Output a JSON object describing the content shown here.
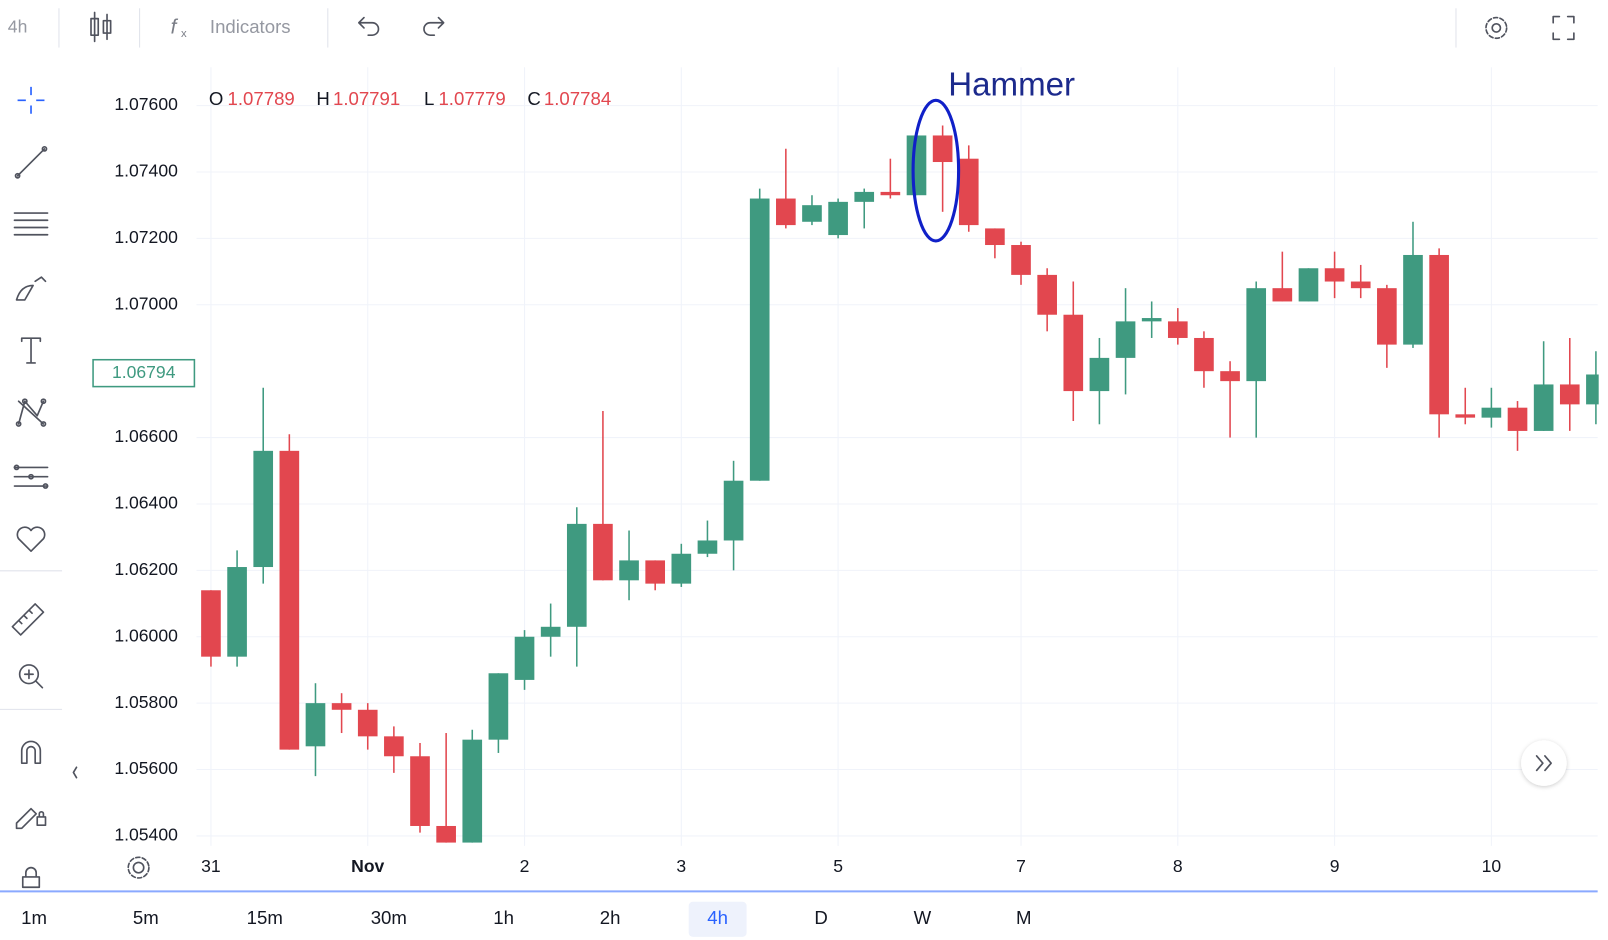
{
  "toolbar": {
    "interval": "4h",
    "indicators": "Indicators"
  },
  "chart_data": {
    "type": "candlestick",
    "annotation": "Hammer",
    "ohlc_legend": [
      {
        "key": "O",
        "value": 1.07789
      },
      {
        "key": "H",
        "value": 1.07791
      },
      {
        "key": "L",
        "value": 1.07779
      },
      {
        "key": "C",
        "value": 1.07784
      }
    ],
    "categories": [
      "31",
      null,
      null,
      null,
      null,
      null,
      "Nov",
      null,
      null,
      null,
      null,
      null,
      "2",
      null,
      null,
      null,
      null,
      null,
      "3",
      null,
      null,
      null,
      null,
      null,
      "5",
      null,
      null,
      null,
      null,
      null,
      null,
      "7",
      null,
      null,
      null,
      null,
      null,
      "8",
      null,
      null,
      null,
      null,
      null,
      "9",
      null,
      null,
      null,
      null,
      null,
      "10",
      null,
      null,
      null,
      null
    ],
    "open": [
      1.0614,
      1.0594,
      1.0621,
      1.0656,
      1.0567,
      1.058,
      1.0578,
      1.057,
      1.0564,
      1.0543,
      1.0538,
      1.0569,
      1.0587,
      1.06,
      1.0603,
      1.0634,
      1.0617,
      1.0623,
      1.0616,
      1.0625,
      1.0629,
      1.0647,
      1.0732,
      1.0725,
      1.0721,
      1.0731,
      1.0734,
      1.0733,
      1.0751,
      1.0744,
      1.0723,
      1.0718,
      1.0709,
      1.0697,
      1.0674,
      1.0684,
      1.0695,
      1.0695,
      1.069,
      1.068,
      1.0677,
      1.0705,
      1.0701,
      1.0711,
      1.0707,
      1.0705,
      1.0688,
      1.0715,
      1.0667,
      1.0666,
      1.0669,
      1.0662,
      1.0676,
      1.067
    ],
    "high": [
      1.0614,
      1.0626,
      1.0675,
      1.0661,
      1.0586,
      1.0583,
      1.058,
      1.0573,
      1.0568,
      1.0571,
      1.0572,
      1.0589,
      1.0602,
      1.061,
      1.0639,
      1.0668,
      1.0632,
      1.0623,
      1.0628,
      1.0635,
      1.0653,
      1.0735,
      1.0747,
      1.0733,
      1.0732,
      1.0735,
      1.0744,
      1.0751,
      1.0754,
      1.0748,
      1.0723,
      1.0719,
      1.0711,
      1.0707,
      1.069,
      1.0705,
      1.0701,
      1.0699,
      1.0692,
      1.0683,
      1.0707,
      1.0716,
      1.0711,
      1.0716,
      1.0712,
      1.0706,
      1.0725,
      1.0717,
      1.0675,
      1.0675,
      1.0671,
      1.0689,
      1.069,
      1.0686
    ],
    "low": [
      1.0591,
      1.0591,
      1.0616,
      1.0566,
      1.0558,
      1.0571,
      1.0566,
      1.0559,
      1.0541,
      1.0538,
      1.0538,
      1.0565,
      1.0584,
      1.0594,
      1.0591,
      1.0617,
      1.0611,
      1.0614,
      1.0615,
      1.0624,
      1.062,
      1.0647,
      1.0723,
      1.0724,
      1.072,
      1.0723,
      1.0732,
      1.0733,
      1.0728,
      1.0722,
      1.0714,
      1.0706,
      1.0692,
      1.0665,
      1.0664,
      1.0673,
      1.069,
      1.0688,
      1.0675,
      1.066,
      1.066,
      1.0701,
      1.0701,
      1.0702,
      1.0702,
      1.0681,
      1.0687,
      1.066,
      1.0664,
      1.0663,
      1.0656,
      1.0662,
      1.0662,
      1.0664
    ],
    "close": [
      1.0594,
      1.0621,
      1.0656,
      1.0566,
      1.058,
      1.0578,
      1.057,
      1.0564,
      1.0543,
      1.0538,
      1.0569,
      1.0589,
      1.06,
      1.0603,
      1.0634,
      1.0617,
      1.0623,
      1.0616,
      1.0625,
      1.0629,
      1.0647,
      1.0732,
      1.0724,
      1.073,
      1.0731,
      1.0734,
      1.0733,
      1.0751,
      1.0743,
      1.0724,
      1.0718,
      1.0709,
      1.0697,
      1.0674,
      1.0684,
      1.0695,
      1.0696,
      1.069,
      1.068,
      1.0677,
      1.0705,
      1.0701,
      1.0711,
      1.0707,
      1.0705,
      1.0688,
      1.0715,
      1.0667,
      1.0666,
      1.0669,
      1.0662,
      1.0676,
      1.067,
      1.0679
    ],
    "up_color": "#3f9a80",
    "down_color": "#e2474f",
    "ylim": [
      1.0537,
      1.077
    ],
    "yticks": [
      {
        "value": 1.054,
        "label": "1.05400"
      },
      {
        "value": 1.056,
        "label": "1.05600"
      },
      {
        "value": 1.058,
        "label": "1.05800"
      },
      {
        "value": 1.06,
        "label": "1.06000"
      },
      {
        "value": 1.062,
        "label": "1.06200"
      },
      {
        "value": 1.064,
        "label": "1.06400"
      },
      {
        "value": 1.066,
        "label": "1.06600"
      },
      {
        "value": 1.07,
        "label": "1.07000"
      },
      {
        "value": 1.072,
        "label": "1.07200"
      },
      {
        "value": 1.074,
        "label": "1.07400"
      },
      {
        "value": 1.076,
        "label": "1.07600"
      }
    ],
    "last_price": 1.06794,
    "grid": true
  },
  "timeframes": [
    {
      "label": "1m",
      "active": false
    },
    {
      "label": "5m",
      "active": false
    },
    {
      "label": "15m",
      "active": false
    },
    {
      "label": "30m",
      "active": false
    },
    {
      "label": "1h",
      "active": false
    },
    {
      "label": "2h",
      "active": false
    },
    {
      "label": "4h",
      "active": true
    },
    {
      "label": "D",
      "active": false
    },
    {
      "label": "W",
      "active": false
    },
    {
      "label": "M",
      "active": false
    }
  ]
}
